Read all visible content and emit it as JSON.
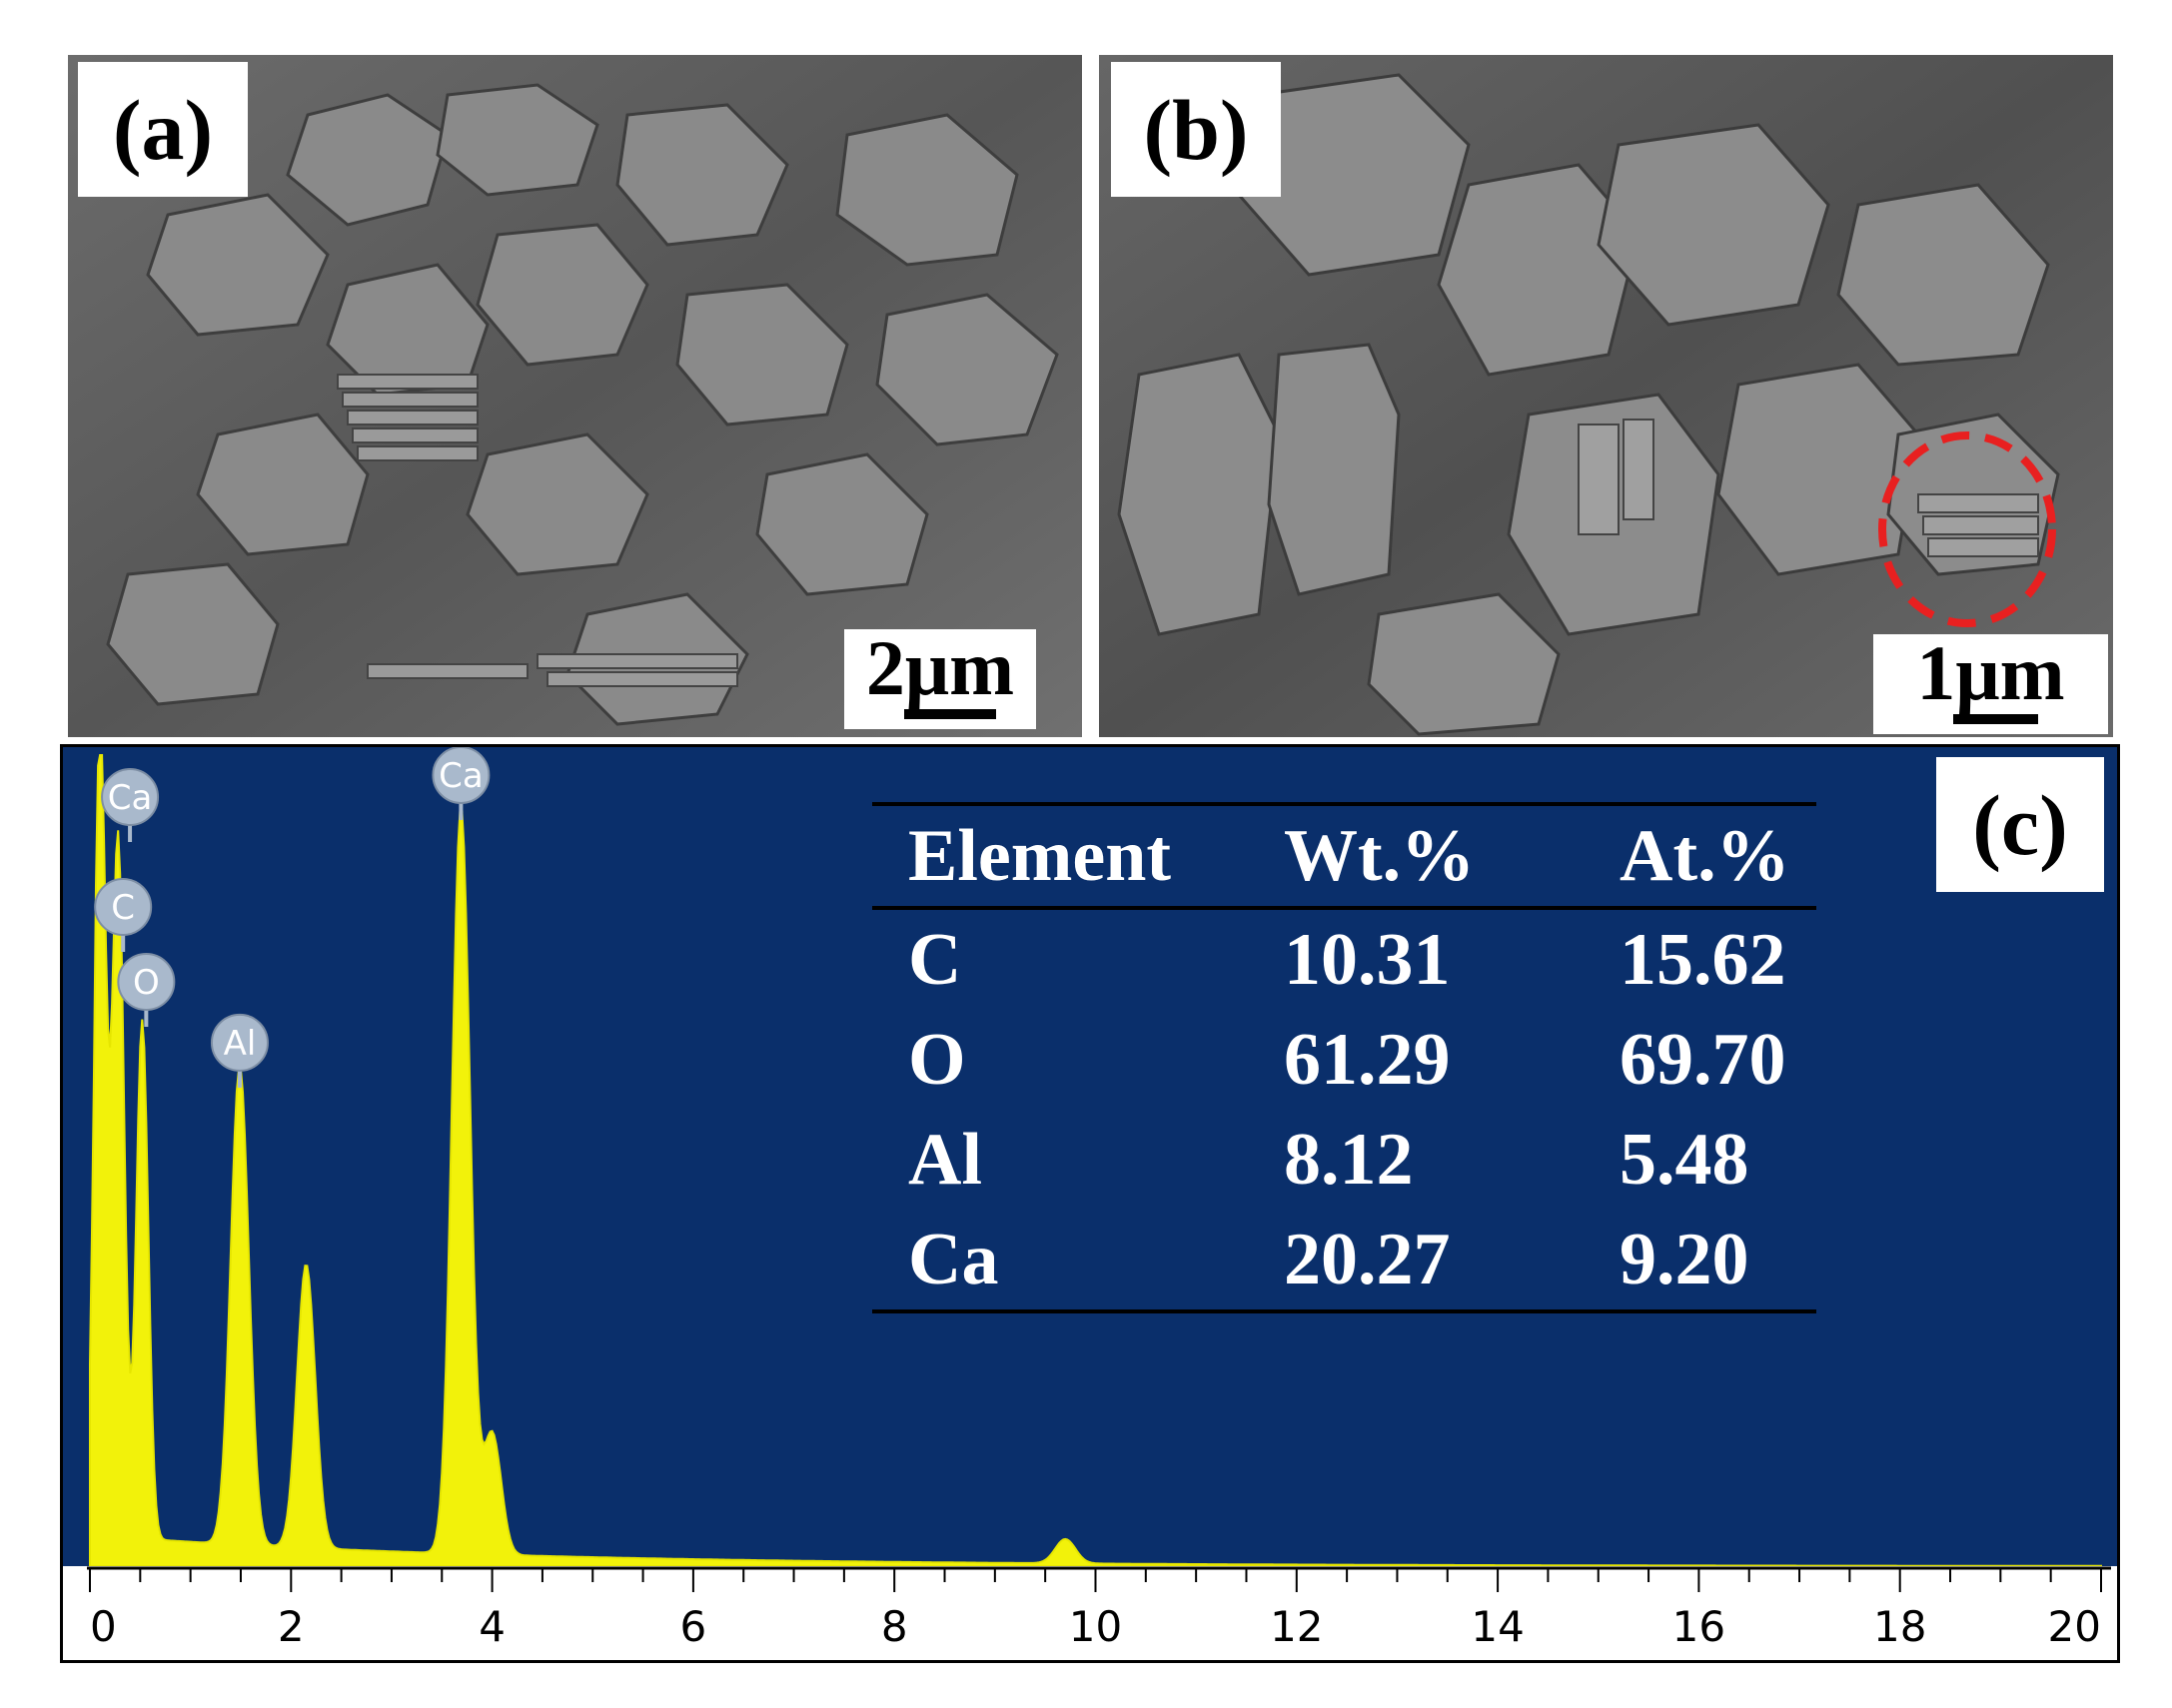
{
  "panels": {
    "a": {
      "label": "(a)",
      "scale_label": "2μm"
    },
    "b": {
      "label": "(b)",
      "scale_label": "1μm"
    },
    "c": {
      "label": "(c)"
    }
  },
  "table": {
    "headers": [
      "Element",
      "Wt.%",
      "At.%"
    ],
    "rows": [
      [
        "C",
        "10.31",
        "15.62"
      ],
      [
        "O",
        "61.29",
        "69.70"
      ],
      [
        "Al",
        "8.12",
        "5.48"
      ],
      [
        "Ca",
        "20.27",
        "9.20"
      ]
    ]
  },
  "chart_data": {
    "type": "line",
    "xlim": [
      0,
      20
    ],
    "xticks": [
      "0",
      "2",
      "4",
      "6",
      "8",
      "10",
      "12",
      "14",
      "16",
      "18",
      "20"
    ],
    "peaks": [
      {
        "element": "Ca",
        "x": 0.1,
        "rel_height": 1.0,
        "labeled": true
      },
      {
        "element": "C",
        "x": 0.28,
        "rel_height": 0.86,
        "labeled": true
      },
      {
        "element": "O",
        "x": 0.52,
        "rel_height": 0.64,
        "labeled": true
      },
      {
        "element": "Al",
        "x": 1.49,
        "rel_height": 0.59,
        "labeled": true
      },
      {
        "element": "",
        "x": 2.15,
        "rel_height": 0.35,
        "labeled": false
      },
      {
        "element": "Ca",
        "x": 3.69,
        "rel_height": 0.92,
        "labeled": true
      },
      {
        "element": "",
        "x": 4.0,
        "rel_height": 0.15,
        "labeled": false
      },
      {
        "element": "",
        "x": 9.7,
        "rel_height": 0.03,
        "labeled": false
      }
    ],
    "colors": {
      "spectrum": "#f2f20a",
      "background": "#0a2f6b",
      "peak_label_fill": "#a9b9cc"
    }
  }
}
